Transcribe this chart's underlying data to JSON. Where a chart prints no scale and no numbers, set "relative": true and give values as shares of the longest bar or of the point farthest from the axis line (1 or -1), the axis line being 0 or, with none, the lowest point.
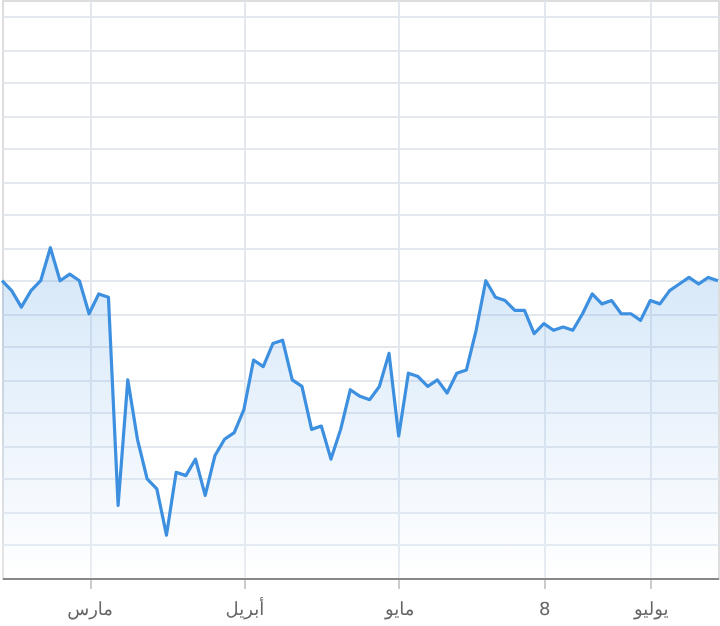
{
  "chart_data": {
    "type": "area",
    "relative": true,
    "grid": true,
    "categories": [
      null,
      null,
      null,
      null,
      null,
      null,
      null,
      null,
      null,
      "مارس",
      null,
      null,
      null,
      null,
      null,
      null,
      null,
      null,
      null,
      null,
      null,
      null,
      null,
      null,
      null,
      "أبريل",
      null,
      null,
      null,
      null,
      null,
      null,
      null,
      null,
      null,
      null,
      null,
      null,
      null,
      null,
      null,
      "مايو",
      null,
      null,
      null,
      null,
      null,
      null,
      null,
      null,
      null,
      null,
      null,
      null,
      null,
      null,
      "8",
      null,
      null,
      null,
      null,
      null,
      null,
      null,
      null,
      null,
      null,
      "يوليو",
      null,
      null,
      null,
      null,
      null,
      null,
      null
    ],
    "series": [
      {
        "color": "#3d8fe0",
        "values": [
          0.9,
          0.87,
          0.82,
          0.87,
          0.9,
          1.0,
          0.9,
          0.92,
          0.9,
          0.8,
          0.86,
          0.85,
          0.22,
          0.6,
          0.42,
          0.3,
          0.27,
          0.13,
          0.32,
          0.31,
          0.36,
          0.25,
          0.37,
          0.42,
          0.44,
          0.51,
          0.66,
          0.64,
          0.71,
          0.72,
          0.6,
          0.58,
          0.45,
          0.46,
          0.36,
          0.45,
          0.57,
          0.55,
          0.54,
          0.58,
          0.68,
          0.43,
          0.62,
          0.61,
          0.58,
          0.6,
          0.56,
          0.62,
          0.63,
          0.75,
          0.9,
          0.85,
          0.84,
          0.81,
          0.81,
          0.74,
          0.77,
          0.75,
          0.76,
          0.75,
          0.8,
          0.86,
          0.83,
          0.84,
          0.8,
          0.8,
          0.78,
          0.84,
          0.83,
          0.87,
          0.89,
          0.91,
          0.89,
          0.91,
          0.9
        ]
      }
    ]
  }
}
